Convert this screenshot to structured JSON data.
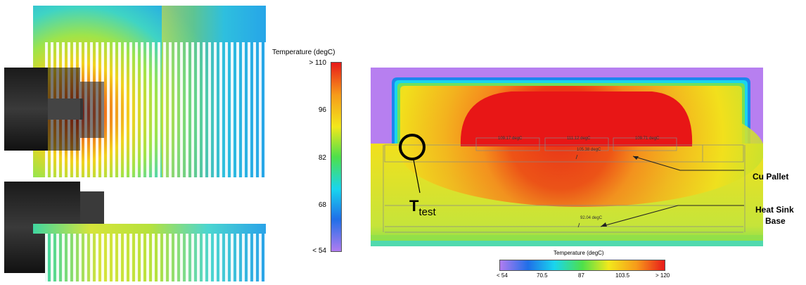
{
  "left_figure": {
    "colorbar": {
      "title": "Temperature (degC)",
      "ticks": [
        "> 110",
        "96",
        "82",
        "68",
        "< 54"
      ],
      "colors": [
        "#b07cf0",
        "#1f6fe8",
        "#19d5ee",
        "#4ee04a",
        "#f2e81c",
        "#f79a1a",
        "#e71a1a"
      ]
    }
  },
  "right_figure": {
    "probes": {
      "p1": "109.17 degC",
      "p2": "111.12 degC",
      "p3": "109.71 degC",
      "p4": "105.38 degC",
      "p5": "92.04 degC"
    },
    "test_point_label": {
      "main": "T",
      "sub": "test"
    },
    "callouts": {
      "cu_pallet": "Cu Pallet",
      "heat_sink_line1": "Heat Sink",
      "heat_sink_line2": "Base"
    },
    "colorbar": {
      "title": "Temperature (degC)",
      "ticks": [
        "< 54",
        "70.5",
        "87",
        "103.5",
        "> 120"
      ],
      "colors": [
        "#b07cf0",
        "#1f6fe8",
        "#19d5ee",
        "#4ee04a",
        "#f2e81c",
        "#f79a1a",
        "#e71a1a"
      ]
    }
  }
}
